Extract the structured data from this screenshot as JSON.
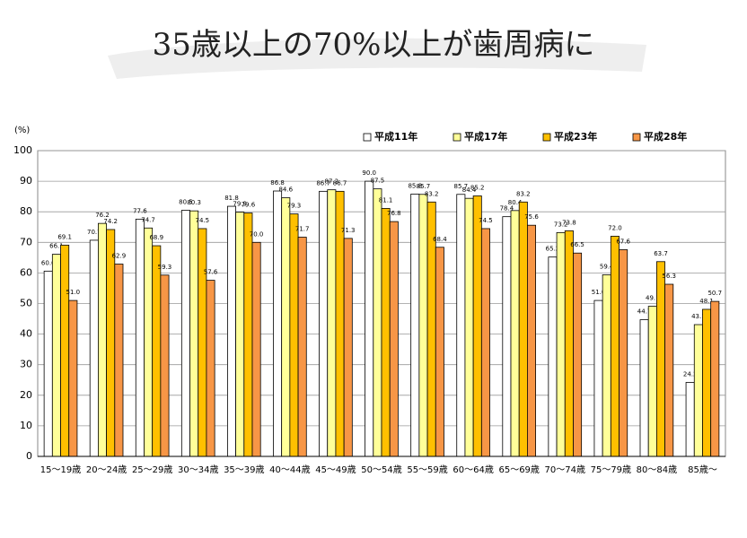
{
  "chart_data": {
    "type": "bar",
    "title": "35歳以上の70%以上が歯周病に",
    "y_label": "(%)",
    "categories": [
      "15〜19歳",
      "20〜24歳",
      "25〜29歳",
      "30〜34歳",
      "35〜39歳",
      "40〜44歳",
      "45〜49歳",
      "50〜54歳",
      "55〜59歳",
      "60〜64歳",
      "65〜69歳",
      "70〜74歳",
      "75〜79歳",
      "80〜84歳",
      "85歳〜"
    ],
    "series": [
      {
        "name": "平成11年",
        "color": "#ffffff",
        "values": [
          60.6,
          70.7,
          77.6,
          80.5,
          81.8,
          86.8,
          86.7,
          90.0,
          85.8,
          85.7,
          78.4,
          65.2,
          51.0,
          44.7,
          24.2
        ],
        "value_labels": [
          "60.6",
          "70.7",
          "77.6",
          "80.5",
          "81.8",
          "86.8",
          "86.7",
          "90.0",
          "85.8",
          "85.7",
          "78.4",
          "65.2",
          "51.0",
          "44.7",
          "24.2"
        ]
      },
      {
        "name": "平成17年",
        "color": "#ffff99",
        "values": [
          66.1,
          76.2,
          74.7,
          80.3,
          79.9,
          84.6,
          87.2,
          87.5,
          85.7,
          84.4,
          80.4,
          73.2,
          59.4,
          49.1,
          43.1
        ],
        "value_labels": [
          "66.1",
          "76.2",
          "74.7",
          "80.3",
          "79.9",
          "84.6",
          "87.2",
          "87.5",
          "85.7",
          "84.4",
          "80.4",
          "73.2",
          "59.4",
          "49.1",
          "43.1"
        ]
      },
      {
        "name": "平成23年",
        "color": "#ffc000",
        "values": [
          69.1,
          74.2,
          68.9,
          74.5,
          79.6,
          79.3,
          86.7,
          81.1,
          83.2,
          85.2,
          83.2,
          73.8,
          72.0,
          63.7,
          48.1
        ],
        "value_labels": [
          "69.1",
          "74.2",
          "68.9",
          "74.5",
          "79.6",
          "79.3",
          "86.7",
          "81.1",
          "83.2",
          "85.2",
          "83.2",
          "73.8",
          "72.0",
          "63.7",
          "48.1"
        ]
      },
      {
        "name": "平成28年",
        "color": "#f79646",
        "values": [
          51.0,
          62.9,
          59.3,
          57.6,
          70.0,
          71.7,
          71.3,
          76.8,
          68.4,
          74.5,
          75.6,
          66.5,
          67.6,
          56.3,
          50.7
        ],
        "value_labels": [
          "51.0",
          "62.9",
          "59.3",
          "57.6",
          "70.0",
          "71.7",
          "71.3",
          "76.8",
          "68.4",
          "74.5",
          "75.6",
          "66.5",
          "67.6",
          "56.3",
          "50.7"
        ]
      }
    ],
    "ylim": [
      0,
      100
    ],
    "yticks": [
      0,
      10,
      20,
      30,
      40,
      50,
      60,
      70,
      80,
      90,
      100
    ],
    "grid": true
  }
}
